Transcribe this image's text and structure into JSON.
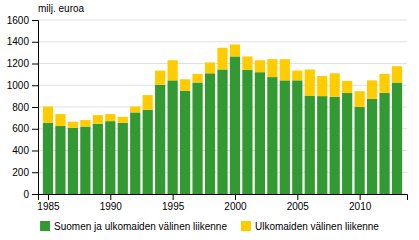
{
  "chart_data": {
    "type": "bar",
    "stacked": true,
    "x": [
      1985,
      1986,
      1987,
      1988,
      1989,
      1990,
      1991,
      1992,
      1993,
      1994,
      1995,
      1996,
      1997,
      1998,
      1999,
      2000,
      2001,
      2002,
      2003,
      2004,
      2005,
      2006,
      2007,
      2008,
      2009,
      2010,
      2011,
      2012,
      2013
    ],
    "xlim": [
      1984.2,
      2013.8
    ],
    "xticks": [
      1985,
      1990,
      1995,
      2000,
      2005,
      2010
    ],
    "ylabel": "milj. euroa",
    "ylim": [
      0,
      1600
    ],
    "yticks": [
      0,
      200,
      400,
      600,
      800,
      1000,
      1200,
      1400,
      1600
    ],
    "grid": true,
    "legend": "bottom",
    "series": [
      {
        "name": "Suomen ja ulkomaiden välinen liikenne",
        "color": "#339933",
        "values": [
          655,
          625,
          610,
          620,
          645,
          670,
          655,
          750,
          775,
          1005,
          1045,
          950,
          1025,
          1110,
          1145,
          1265,
          1140,
          1120,
          1075,
          1045,
          1045,
          905,
          900,
          895,
          930,
          800,
          875,
          930,
          1025
        ]
      },
      {
        "name": "Ulkomaiden välinen liikenne",
        "color": "#ffcc00",
        "values": [
          150,
          110,
          55,
          60,
          80,
          65,
          55,
          55,
          135,
          130,
          185,
          105,
          80,
          100,
          200,
          110,
          125,
          110,
          165,
          195,
          90,
          240,
          185,
          215,
          110,
          145,
          170,
          175,
          150
        ]
      }
    ]
  }
}
